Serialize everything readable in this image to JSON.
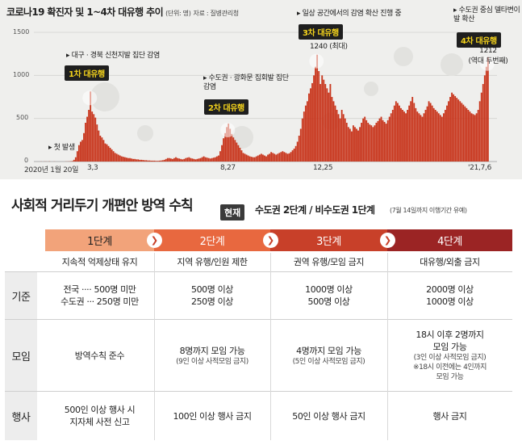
{
  "chart_data": {
    "type": "bar",
    "title": "코로나19 확진자 및 1~4차 대유행 추이",
    "subtitle": "(단위: 명)",
    "source": "자료 : 질병관리청",
    "ylim": [
      0,
      1500
    ],
    "yticks": [
      0,
      500,
      1000,
      1500
    ],
    "xticks": [
      "2020년 1월 20일",
      "3,3",
      "8,27",
      "12,25",
      "'21,7,6"
    ],
    "series": [
      {
        "values": [
          0,
          0,
          0,
          0,
          1,
          0,
          1,
          1,
          0,
          2,
          0,
          0,
          1,
          0,
          0,
          0,
          0,
          0,
          0,
          1,
          1,
          2,
          3,
          6,
          20,
          50,
          120,
          190,
          230,
          250,
          330,
          450,
          520,
          600,
          813,
          580,
          550,
          510,
          430,
          360,
          300,
          280,
          250,
          210,
          200,
          180,
          160,
          140,
          120,
          100,
          90,
          80,
          70,
          60,
          55,
          50,
          45,
          40,
          40,
          35,
          30,
          30,
          25,
          25,
          20,
          20,
          18,
          15,
          15,
          12,
          12,
          10,
          10,
          10,
          8,
          8,
          10,
          12,
          15,
          20,
          30,
          40,
          40,
          35,
          30,
          40,
          50,
          40,
          35,
          30,
          25,
          30,
          40,
          45,
          50,
          40,
          35,
          30,
          25,
          30,
          35,
          40,
          50,
          60,
          50,
          45,
          40,
          35,
          40,
          45,
          50,
          60,
          70,
          120,
          190,
          270,
          330,
          400,
          441,
          380,
          320,
          280,
          250,
          220,
          190,
          160,
          130,
          100,
          90,
          80,
          70,
          60,
          55,
          50,
          50,
          60,
          70,
          80,
          90,
          80,
          70,
          60,
          80,
          90,
          110,
          100,
          90,
          80,
          90,
          100,
          110,
          120,
          110,
          100,
          90,
          95,
          110,
          130,
          150,
          180,
          230,
          300,
          380,
          500,
          580,
          650,
          700,
          790,
          850,
          910,
          1000,
          1100,
          1240,
          1050,
          900,
          1000,
          950,
          900,
          850,
          800,
          900,
          750,
          700,
          650,
          600,
          550,
          500,
          600,
          550,
          500,
          450,
          400,
          380,
          350,
          420,
          400,
          380,
          360,
          400,
          450,
          500,
          520,
          480,
          450,
          430,
          420,
          400,
          420,
          450,
          470,
          500,
          520,
          480,
          460,
          440,
          480,
          520,
          560,
          600,
          650,
          700,
          680,
          650,
          620,
          600,
          580,
          560,
          600,
          650,
          700,
          750,
          680,
          620,
          580,
          560,
          540,
          520,
          560,
          600,
          640,
          700,
          680,
          650,
          620,
          600,
          580,
          560,
          540,
          520,
          560,
          600,
          650,
          700,
          750,
          800,
          780,
          760,
          740,
          720,
          700,
          680,
          660,
          640,
          620,
          600,
          580,
          560,
          550,
          540,
          560,
          600,
          700,
          800,
          900,
          1000,
          1100,
          1212
        ]
      }
    ],
    "annotations": [
      {
        "text": "첫 발생"
      },
      {
        "text": "대구 · 경북 신천지발 집단 감염",
        "badge": "1차 대유행"
      },
      {
        "text": "수도권 · 광화문 집회발 집단 감염",
        "badge": "2차 대유행"
      },
      {
        "text": "일상 공간에서의 감염 확산 진행 중",
        "badge": "3차 대유행",
        "value": "1240",
        "value_note": "(최대)"
      },
      {
        "text": "수도권 중심 델타변이발 확산",
        "badge": "4차 대유행",
        "value": "1212",
        "value_note": "(역대 두번째)"
      }
    ],
    "colors": {
      "bar": "#c8351c",
      "background": "#efefed",
      "badge_bg": "#1f1f1f",
      "badge_text": "#f3d21c"
    }
  },
  "policy": {
    "title": "사회적 거리두기 개편안 방역 수칙",
    "now_badge": "현재",
    "current": "수도권 2단계 / 비수도권 1단계",
    "note": "(7월 14일까지 이행기간 유예)",
    "levels": [
      {
        "label": "1단계",
        "desc": "지속적 억제상태 유지"
      },
      {
        "label": "2단계",
        "desc": "지역 유행/인원 제한"
      },
      {
        "label": "3단계",
        "desc": "권역 유행/모임 금지"
      },
      {
        "label": "4단계",
        "desc": "대유행/외출 금지"
      }
    ],
    "rows": [
      {
        "label": "기준",
        "cells": [
          {
            "lines": [
              "전국 ···· 500명 미만",
              "수도권 ··· 250명 미만"
            ]
          },
          {
            "lines": [
              "500명 이상",
              "250명 이상"
            ]
          },
          {
            "lines": [
              "1000명 이상",
              "500명 이상"
            ]
          },
          {
            "lines": [
              "2000명 이상",
              "1000명 이상"
            ]
          }
        ]
      },
      {
        "label": "모임",
        "cells": [
          {
            "lines": [
              "방역수칙 준수"
            ]
          },
          {
            "lines": [
              "8명까지 모임 가능"
            ],
            "small": [
              "(9인 이상 사적모임 금지)"
            ]
          },
          {
            "lines": [
              "4명까지 모임 가능"
            ],
            "small": [
              "(5인 이상 사적모임 금지)"
            ]
          },
          {
            "lines": [
              "18시 이후 2명까지",
              "모임 가능"
            ],
            "small": [
              "(3인 이상 사적모임 금지)",
              "※18시 이전에는 4인까지",
              "모임 가능"
            ]
          }
        ]
      },
      {
        "label": "행사",
        "cells": [
          {
            "lines": [
              "500인 이상 행사 시",
              "지자체 사전 신고"
            ]
          },
          {
            "lines": [
              "100인 이상 행사 금지"
            ]
          },
          {
            "lines": [
              "50인 이상 행사 금지"
            ]
          },
          {
            "lines": [
              "행사 금지"
            ]
          }
        ]
      }
    ],
    "arrow_icon": "chevron-right-icon"
  }
}
